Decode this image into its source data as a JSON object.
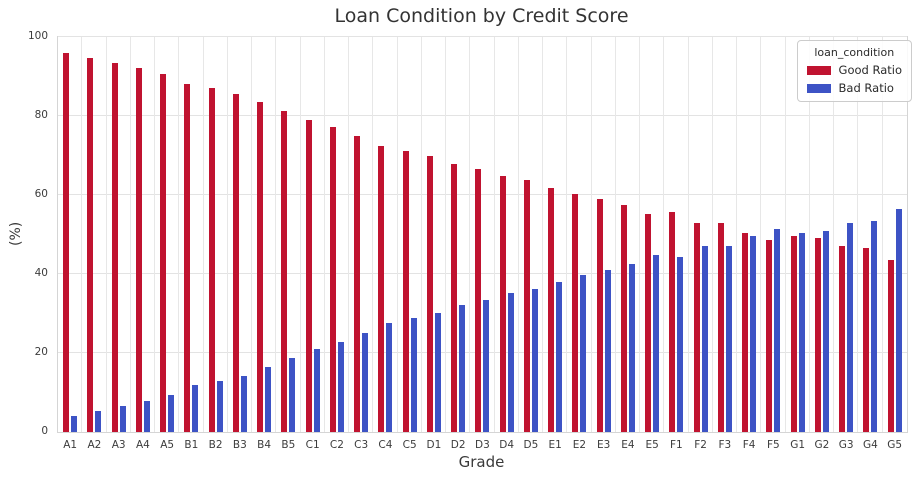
{
  "chart_data": {
    "type": "bar",
    "title": "Loan Condition by Credit Score",
    "xlabel": "Grade",
    "ylabel": "(%)",
    "ylim": [
      0,
      100
    ],
    "yticks": [
      0,
      20,
      40,
      60,
      80,
      100
    ],
    "grid": true,
    "legend_title": "loan_condition",
    "legend_position": "upper right",
    "categories": [
      "A1",
      "A2",
      "A3",
      "A4",
      "A5",
      "B1",
      "B2",
      "B3",
      "B4",
      "B5",
      "C1",
      "C2",
      "C3",
      "C4",
      "C5",
      "D1",
      "D2",
      "D3",
      "D4",
      "D5",
      "E1",
      "E2",
      "E3",
      "E4",
      "E5",
      "F1",
      "F2",
      "F3",
      "F4",
      "F5",
      "G1",
      "G2",
      "G3",
      "G4",
      "G5"
    ],
    "series": [
      {
        "name": "Good Ratio",
        "color": "#c01330",
        "values": [
          96.0,
          94.6,
          93.5,
          92.1,
          90.6,
          88.0,
          87.1,
          85.7,
          83.5,
          81.2,
          79.1,
          77.1,
          75.0,
          72.5,
          71.1,
          69.8,
          67.8,
          66.6,
          64.7,
          63.7,
          61.9,
          60.3,
          58.9,
          57.5,
          55.2,
          55.7,
          52.9,
          52.9,
          50.3,
          48.6,
          49.5,
          49.1,
          47.0,
          46.5,
          43.5
        ]
      },
      {
        "name": "Bad Ratio",
        "color": "#3d53c5",
        "values": [
          4.0,
          5.4,
          6.5,
          7.9,
          9.4,
          12.0,
          12.9,
          14.3,
          16.5,
          18.8,
          20.9,
          22.9,
          25.0,
          27.5,
          28.9,
          30.2,
          32.2,
          33.4,
          35.3,
          36.3,
          38.1,
          39.7,
          41.1,
          42.5,
          44.8,
          44.3,
          47.1,
          47.1,
          49.7,
          51.4,
          50.5,
          50.9,
          53.0,
          53.5,
          56.5
        ]
      }
    ]
  }
}
